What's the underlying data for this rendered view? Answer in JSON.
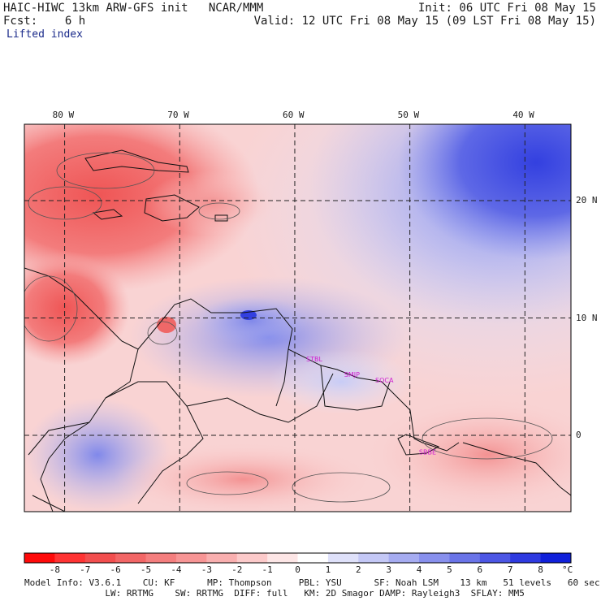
{
  "header": {
    "title_left": "HAIC-HIWC 13km ARW-GFS init   NCAR/MMM",
    "fcst_label": "Fcst:    6 h",
    "field_name": "Lifted index",
    "init": "Init: 06 UTC Fri 08 May 15",
    "valid": "Valid: 12 UTC Fri 08 May 15 (09 LST Fri 08 May 15)"
  },
  "axes": {
    "lon_ticks": [
      {
        "value": -80,
        "label": "80 W"
      },
      {
        "value": -70,
        "label": "70 W"
      },
      {
        "value": -60,
        "label": "60 W"
      },
      {
        "value": -50,
        "label": "50 W"
      },
      {
        "value": -40,
        "label": "40 W"
      }
    ],
    "lat_ticks": [
      {
        "value": 20,
        "label": "20 N"
      },
      {
        "value": 10,
        "label": "10 N"
      },
      {
        "value": 0,
        "label": "0"
      }
    ],
    "lon_range": [
      -83.5,
      -36
    ],
    "lat_range": [
      -6.5,
      26.5
    ],
    "grid": "dashed"
  },
  "stations": [
    {
      "id": "STBL",
      "lon": -58.3,
      "lat": 6.5
    },
    {
      "id": "SMJP",
      "lon": -55.0,
      "lat": 5.2
    },
    {
      "id": "SOCA",
      "lon": -52.3,
      "lat": 4.7
    },
    {
      "id": "SBBE",
      "lon": -48.5,
      "lat": -1.4
    }
  ],
  "colorbar": {
    "unit": "°C",
    "labels": [
      "-8",
      "-7",
      "-6",
      "-5",
      "-4",
      "-3",
      "-2",
      "-1",
      "0",
      "1",
      "2",
      "3",
      "4",
      "5",
      "6",
      "7",
      "8"
    ],
    "colors": [
      "#ff0a0a",
      "#ff3333",
      "#f24e4e",
      "#f26666",
      "#f47e7e",
      "#f79595",
      "#f9afaf",
      "#fccaca",
      "#fde6e6",
      "#ffffff",
      "#dfe1fa",
      "#c4c8f6",
      "#a6acf1",
      "#8890ed",
      "#6a74e8",
      "#4c56e4",
      "#2e3ae0",
      "#1020da"
    ]
  },
  "footer": {
    "line1": "Model Info: V3.6.1    CU: KF      MP: Thompson     PBL: YSU      SF: Noah LSM    13 km   51 levels   60 sec",
    "line2": "               LW: RRTMG    SW: RRTMG  DIFF: full   KM: 2D Smagor DAMP: Rayleigh3  SFLAY: MM5"
  }
}
